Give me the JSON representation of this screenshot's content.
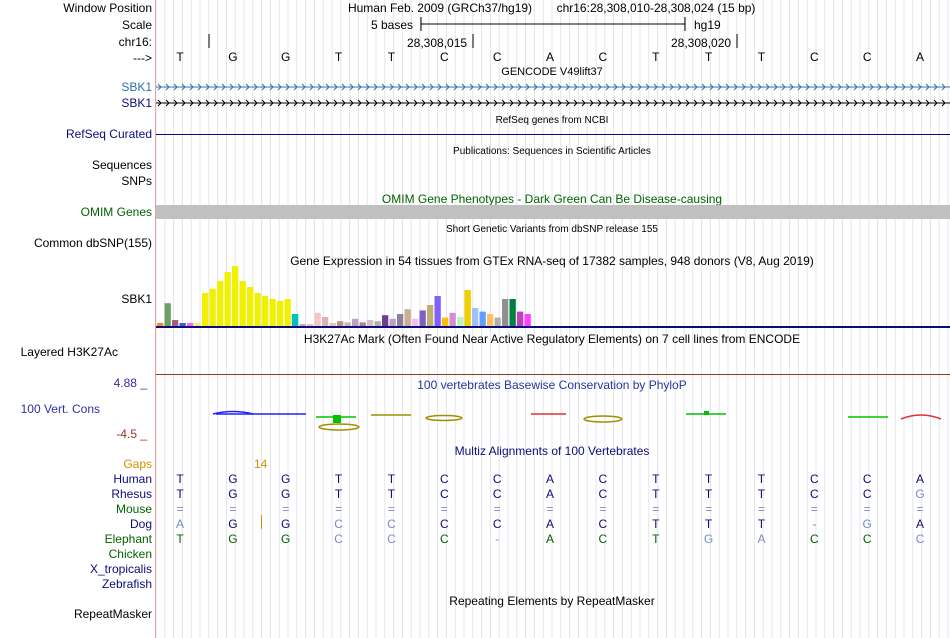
{
  "labels": {
    "window_position": "Window Position",
    "scale": "Scale",
    "chrom": "chr16:",
    "arrow": "--->",
    "sbk1_gencode_1": "SBK1",
    "sbk1_gencode_2": "SBK1",
    "refseq": "RefSeq Curated",
    "sequences": "Sequences",
    "snps": "SNPs",
    "omim": "OMIM Genes",
    "dbsnp": "Common dbSNP(155)",
    "sbk1_gtex": "SBK1",
    "h3k27ac": "Layered H3K27Ac",
    "phylop_max": "4.88 _",
    "vert_cons": "100 Vert. Cons",
    "phylop_min": "-4.5 _",
    "gaps": "Gaps",
    "repeatmasker": "RepeatMasker"
  },
  "header": {
    "assembly": "Human Feb. 2009 (GRCh37/hg19)",
    "position": "chr16:28,308,010-28,308,024 (15 bp)",
    "scale_text": "5 bases",
    "hg19": "hg19",
    "coord_1": "28,308,015",
    "coord_2": "28,308,020"
  },
  "reference_bases": [
    "T",
    "G",
    "G",
    "T",
    "T",
    "C",
    "C",
    "A",
    "C",
    "T",
    "T",
    "T",
    "C",
    "C",
    "A"
  ],
  "tracks": {
    "gencode": "GENCODE V49lift37",
    "refseq": "RefSeq genes from NCBI",
    "publications": "Publications: Sequences in Scientific Articles",
    "omim": "OMIM Gene Phenotypes - Dark Green Can Be Disease-causing",
    "dbsnp": "Short Genetic Variants from dbSNP release 155",
    "gtex": "Gene Expression in 54 tissues from GTEx RNA-seq of 17382 samples, 948 donors (V8, Aug 2019)",
    "h3k27ac": "H3K27Ac Mark (Often Found Near Active Regulatory Elements) on 7 cell lines from ENCODE",
    "phylop": "100 vertebrates Basewise Conservation by PhyloP",
    "multiz": "Multiz Alignments of 100 Vertebrates",
    "repeatmasker": "Repeating Elements by RepeatMasker"
  },
  "gaps_count": "14",
  "colors": {
    "gencode_blue": "#3070b0",
    "navy": "#0c0c78",
    "omim_green": "#006400",
    "omim_bar": "#c0c0c0",
    "gaps_orange": "#d09000",
    "phylop_max": "#3030a0",
    "phylop_min": "#a03020",
    "divider": "#e8a0a0",
    "faded": "#7a8acb"
  },
  "alignment": {
    "species": [
      {
        "name": "Human",
        "color": "#0c0c78",
        "bases": [
          "T",
          "G",
          "G",
          "T",
          "T",
          "C",
          "C",
          "A",
          "C",
          "T",
          "T",
          "T",
          "C",
          "C",
          "A"
        ],
        "faded": []
      },
      {
        "name": "Rhesus",
        "color": "#0c0c78",
        "bases": [
          "T",
          "G",
          "G",
          "T",
          "T",
          "C",
          "C",
          "A",
          "C",
          "T",
          "T",
          "T",
          "C",
          "C",
          "G"
        ],
        "faded": [
          14
        ]
      },
      {
        "name": "Mouse",
        "color": "#006400",
        "bases": [
          "=",
          "=",
          "=",
          "=",
          "=",
          "=",
          "=",
          "=",
          "=",
          "=",
          "=",
          "=",
          "=",
          "=",
          "="
        ],
        "faded": [
          0,
          1,
          2,
          3,
          4,
          5,
          6,
          7,
          8,
          9,
          10,
          11,
          12,
          13,
          14
        ]
      },
      {
        "name": "Dog",
        "color": "#0c0c78",
        "bases": [
          "A",
          "G",
          "G",
          "C",
          "C",
          "C",
          "C",
          "A",
          "C",
          "T",
          "T",
          "T",
          "-",
          "G",
          "A"
        ],
        "faded": [
          0,
          3,
          4,
          12,
          13
        ]
      },
      {
        "name": "Elephant",
        "color": "#006400",
        "bases": [
          "T",
          "G",
          "G",
          "C",
          "C",
          "C",
          "-",
          "A",
          "C",
          "T",
          "G",
          "A",
          "C",
          "C",
          "C"
        ],
        "faded": [
          3,
          4,
          6,
          10,
          11,
          14
        ]
      },
      {
        "name": "Chicken",
        "color": "#006400",
        "bases": [],
        "faded": []
      },
      {
        "name": "X_tropicalis",
        "color": "#0c0c78",
        "bases": [],
        "faded": []
      },
      {
        "name": "Zebrafish",
        "color": "#0c0c78",
        "bases": [],
        "faded": []
      }
    ]
  },
  "chart_data": [
    {
      "type": "bar",
      "title": "Gene Expression in 54 tissues from GTEx RNA-seq of 17382 samples, 948 donors (V8, Aug 2019)",
      "gene": "SBK1",
      "ylim": [
        0,
        1
      ],
      "values": [
        0.05,
        0.38,
        0.1,
        0.05,
        0.05,
        0.05,
        0.55,
        0.62,
        0.75,
        0.9,
        1.0,
        0.75,
        0.65,
        0.55,
        0.5,
        0.45,
        0.42,
        0.45,
        0.2,
        0.02,
        0.02,
        0.22,
        0.15,
        0.05,
        0.08,
        0.06,
        0.12,
        0.06,
        0.1,
        0.08,
        0.18,
        0.12,
        0.2,
        0.28,
        0.12,
        0.26,
        0.35,
        0.5,
        0.14,
        0.22,
        0.15,
        0.6,
        0.3,
        0.24,
        0.2,
        0.14,
        0.45,
        0.45,
        0.24,
        0.2
      ],
      "colors": [
        "#ff8030",
        "#6aa060",
        "#a06080",
        "#4060c0",
        "#ff60ff",
        "#f0f060",
        "#f0f000",
        "#f0f000",
        "#f0f000",
        "#f0f000",
        "#f0f000",
        "#f0f000",
        "#f0f000",
        "#f0f000",
        "#f0f000",
        "#f0f000",
        "#f0f000",
        "#f0f000",
        "#00c0c0",
        "#d0a0c0",
        "#e8c0c0",
        "#f0c8c8",
        "#e0b0b0",
        "#e0c0c0",
        "#c09080",
        "#d0b0b0",
        "#c0a0c0",
        "#b080a0",
        "#d8c0c0",
        "#b0b0b0",
        "#704090",
        "#c0a0c0",
        "#9080a0",
        "#c8b090",
        "#f0c0f0",
        "#8060c0",
        "#c0b070",
        "#8060ff",
        "#ffc000",
        "#d090d0",
        "#c0f0c0",
        "#f0d000",
        "#a0c0ff",
        "#60a0ff",
        "#ffc060",
        "#b0b0b0",
        "#909090",
        "#008040",
        "#c040c0",
        "#ff40ff"
      ]
    },
    {
      "type": "line",
      "title": "100 vertebrates Basewise Conservation by PhyloP",
      "ylim": [
        -4.5,
        4.88
      ]
    }
  ]
}
